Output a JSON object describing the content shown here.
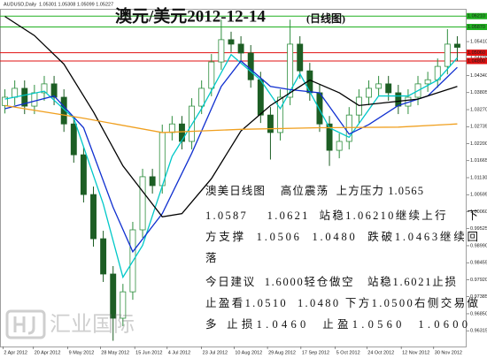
{
  "header": "AUDUSD,Daily  1.05301 1.05308 1.05099 1.05227",
  "chart_data": {
    "type": "candlestick",
    "title": "澳元/美元2012-12-14",
    "subtitle": "(日线图)",
    "up_color": "#2f8f3f",
    "down_color": "#1d5e24",
    "open": [
      1.034,
      1.0366,
      1.0394,
      1.0338,
      1.038,
      1.0408,
      1.0366,
      1.0282,
      1.0185,
      1.006,
      0.9921,
      0.981,
      0.9671,
      0.9754,
      0.9949,
      1.0116,
      1.0088,
      1.0255,
      1.0282,
      1.0227,
      1.0338,
      1.0394,
      1.0477,
      1.0547,
      1.0533,
      1.0505,
      1.0421,
      1.031,
      1.0255,
      1.0366,
      1.0533,
      1.0449,
      1.038,
      1.0282,
      1.0199,
      1.0227,
      1.031,
      1.0366,
      1.0394,
      1.0408,
      1.038,
      1.0338,
      1.0366,
      1.0408,
      1.0421,
      1.0463,
      1.0533
    ],
    "high": [
      1.0391,
      1.0419,
      1.0419,
      1.0405,
      1.0433,
      1.0433,
      1.0391,
      1.0307,
      1.021,
      1.0085,
      0.9946,
      0.9835,
      0.9779,
      0.9974,
      1.0141,
      1.0141,
      1.028,
      1.0307,
      1.0307,
      1.0363,
      1.0419,
      1.0502,
      1.061,
      1.0572,
      1.0558,
      1.053,
      1.0446,
      1.0335,
      1.0391,
      1.061,
      1.0558,
      1.0474,
      1.0405,
      1.0307,
      1.0252,
      1.0335,
      1.0391,
      1.0419,
      1.0433,
      1.0433,
      1.0405,
      1.0391,
      1.0433,
      1.0446,
      1.0488,
      1.058,
      1.0558
    ],
    "low": [
      1.0315,
      1.0341,
      1.0313,
      1.0313,
      1.0355,
      1.0341,
      1.0257,
      1.016,
      1.0035,
      0.9896,
      0.9785,
      0.96,
      0.9646,
      0.9729,
      0.9924,
      1.0063,
      1.0063,
      1.023,
      1.0202,
      1.0202,
      1.0313,
      1.0369,
      1.0452,
      1.0508,
      1.048,
      1.0396,
      1.0285,
      1.017,
      1.023,
      1.0341,
      1.0424,
      1.0355,
      1.0257,
      1.015,
      1.0174,
      1.0202,
      1.0285,
      1.0341,
      1.0369,
      1.0355,
      1.0313,
      1.0313,
      1.0341,
      1.0383,
      1.0396,
      1.0438,
      1.048
    ],
    "close": [
      1.0366,
      1.0394,
      1.0338,
      1.038,
      1.0408,
      1.0366,
      1.0282,
      1.0185,
      1.006,
      0.9921,
      0.981,
      0.9671,
      0.9754,
      0.9949,
      1.0116,
      1.0088,
      1.0255,
      1.0282,
      1.0227,
      1.0338,
      1.0394,
      1.0477,
      1.0547,
      1.0533,
      1.0505,
      1.0421,
      1.031,
      1.0255,
      1.0366,
      1.0533,
      1.0449,
      1.038,
      1.0282,
      1.0199,
      1.0227,
      1.031,
      1.0366,
      1.0394,
      1.0408,
      1.038,
      1.0338,
      1.0366,
      1.0408,
      1.0421,
      1.0463,
      1.0533,
      1.0523
    ],
    "moving_averages": [
      {
        "color": "#00c8c8",
        "x": [
          0,
          4,
          7,
          10,
          12,
          14,
          17,
          20,
          23,
          26,
          28,
          30,
          33,
          35,
          38,
          41,
          44,
          46
        ],
        "values": [
          1.036,
          1.0385,
          1.03,
          1.003,
          0.98,
          0.99,
          1.018,
          1.033,
          1.05,
          1.042,
          1.033,
          1.044,
          1.027,
          1.024,
          1.037,
          1.037,
          1.042,
          1.049
        ]
      },
      {
        "color": "#1030d0",
        "x": [
          0,
          5,
          8,
          11,
          13,
          16,
          19,
          22,
          24,
          27,
          29,
          32,
          35,
          37,
          40,
          43,
          46
        ],
        "values": [
          1.033,
          1.037,
          1.027,
          1.002,
          0.988,
          1.0,
          1.019,
          1.04,
          1.048,
          1.04,
          1.039,
          1.038,
          1.025,
          1.028,
          1.034,
          1.037,
          1.046
        ]
      },
      {
        "color": "#000000",
        "x": [
          0,
          3,
          6,
          9,
          12,
          15,
          16,
          18,
          21,
          24,
          27,
          30,
          31,
          34,
          36,
          39,
          42,
          46
        ],
        "values": [
          1.062,
          1.056,
          1.047,
          1.032,
          1.015,
          1.003,
          0.999,
          1.0,
          1.011,
          1.026,
          1.034,
          1.04,
          1.042,
          1.038,
          1.034,
          1.035,
          1.036,
          1.04
        ]
      },
      {
        "color": "#f0a020",
        "x": [
          0,
          8,
          16,
          24,
          32,
          40,
          46
        ],
        "values": [
          1.034,
          1.03,
          1.0255,
          1.0265,
          1.027,
          1.0272,
          1.0282
        ]
      }
    ],
    "levels": [
      {
        "value": 1.0621,
        "label": "1.06210",
        "color": "#20b020"
      },
      {
        "value": 1.0587,
        "label": "1.05870",
        "color": "#20b020"
      },
      {
        "value": 1.0506,
        "label": "1.05060",
        "color": "#e01010"
      },
      {
        "value": 1.048,
        "label": "1.04800",
        "color": "#e01010"
      }
    ],
    "xlim": [
      -0.5,
      46.5
    ],
    "xticks": [
      {
        "value": -0.2,
        "label": "2 Apr 2012"
      },
      {
        "value": 2.9,
        "label": "20 Apr 2012"
      },
      {
        "value": 6.4,
        "label": "9 May 2012"
      },
      {
        "value": 9.7,
        "label": "28 May 2012"
      },
      {
        "value": 13.2,
        "label": "15 Jun 2012"
      },
      {
        "value": 16.5,
        "label": "4 Jul 2012"
      },
      {
        "value": 20.0,
        "label": "23 Jul 2012"
      },
      {
        "value": 23.3,
        "label": "10 Aug 2012"
      },
      {
        "value": 26.7,
        "label": "29 Aug 2012"
      },
      {
        "value": 30.1,
        "label": "17 Sep 2012"
      },
      {
        "value": 33.6,
        "label": "5 Oct 2012"
      },
      {
        "value": 36.8,
        "label": "24 Oct 2012"
      },
      {
        "value": 40.3,
        "label": "12 Nov 2012"
      },
      {
        "value": 43.6,
        "label": "30 Nov 2012"
      }
    ],
    "ylim": [
      0.9582,
      1.0644
    ],
    "yticks": [
      {
        "value": 1.0541,
        "label": "1.05410"
      },
      {
        "value": 1.04875,
        "label": "1.04875"
      },
      {
        "value": 1.0434,
        "label": "1.04340"
      },
      {
        "value": 1.03805,
        "label": "1.03805"
      },
      {
        "value": 1.0327,
        "label": "1.03270"
      },
      {
        "value": 1.02735,
        "label": "1.02735"
      },
      {
        "value": 1.022,
        "label": "1.02200"
      },
      {
        "value": 1.01665,
        "label": "1.01665"
      },
      {
        "value": 1.0113,
        "label": "1.01130"
      },
      {
        "value": 1.00595,
        "label": "1.00595"
      },
      {
        "value": 1.0006,
        "label": "1.00060"
      },
      {
        "value": 0.99525,
        "label": "0.99525"
      },
      {
        "value": 0.9899,
        "label": "0.98990"
      },
      {
        "value": 0.98455,
        "label": "0.98455"
      },
      {
        "value": 0.9792,
        "label": "0.97920"
      },
      {
        "value": 0.97385,
        "label": "0.97385"
      },
      {
        "value": 0.9685,
        "label": "0.96850"
      },
      {
        "value": 0.96315,
        "label": "0.96315"
      }
    ]
  },
  "commentary": [
    "澳美日线图    高位震荡  上方压力 1.0565",
    "1.0587    1.0621  站稳1.06210继续上行    下",
    "方支撑  1.0506  1.0480  跌破1.0463继续回",
    "落",
    "今日建议  1.6000轻仓做空   站稳1.6021止损",
    "止盈看1.0510  1.0480 下方1.0500右侧交易做",
    "多 止损1.0460  止盈1.0560  1.0600"
  ],
  "watermark": "汇业国际"
}
